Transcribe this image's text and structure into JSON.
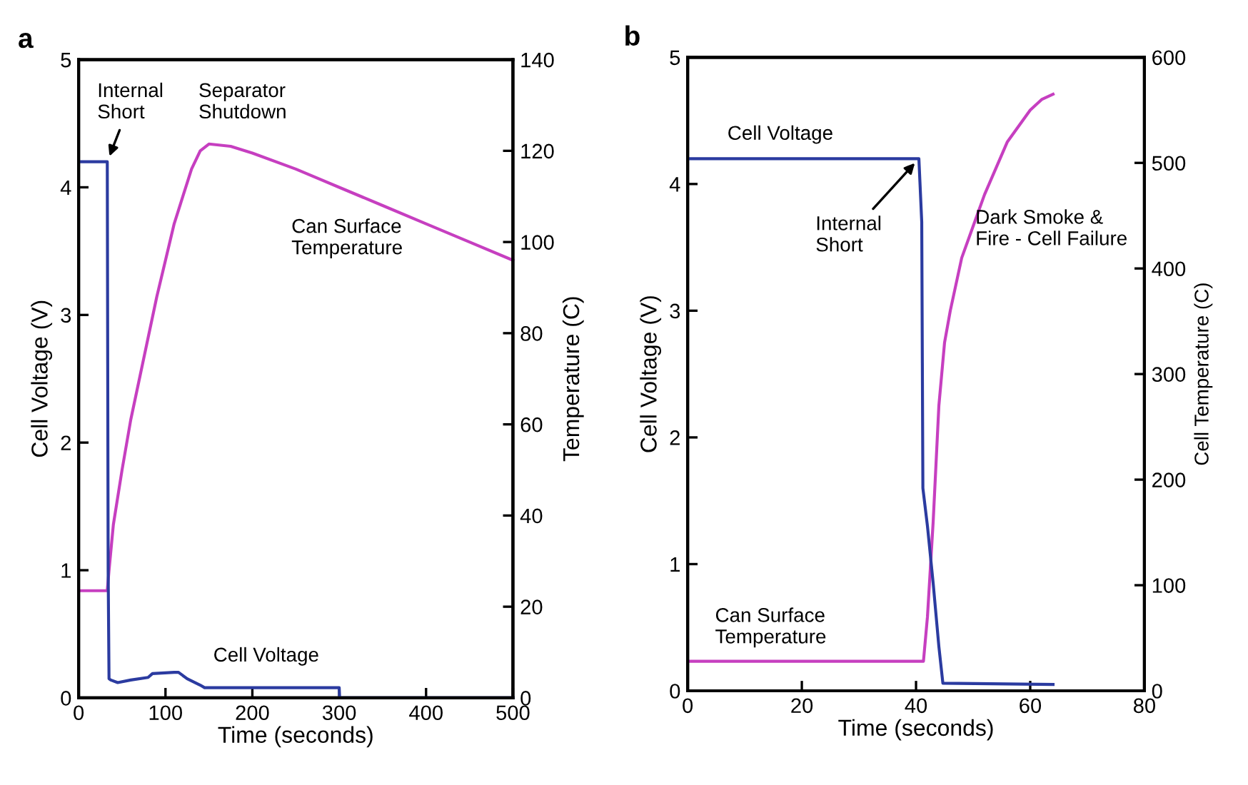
{
  "chart_data": [
    {
      "type": "line",
      "title": "a",
      "xlabel": "Time (seconds)",
      "ylabel": "Cell Voltage (V)",
      "y2label": "Temperature (C)",
      "xlim": [
        0,
        500
      ],
      "xticks": [
        0,
        100,
        200,
        300,
        400,
        500
      ],
      "ylim": [
        0,
        5
      ],
      "yticks": [
        0,
        1,
        2,
        3,
        4,
        5
      ],
      "y2lim": [
        0,
        140
      ],
      "y2ticks": [
        0,
        20,
        40,
        60,
        80,
        100,
        120,
        140
      ],
      "grid": false,
      "legend": false,
      "marker": "none",
      "line_style": "solid",
      "series": [
        {
          "name": "Cell Voltage",
          "color": "#2b3ba0",
          "x": [
            0,
            33,
            34,
            35,
            37,
            45,
            60,
            80,
            85,
            110,
            115,
            125,
            140,
            145,
            200,
            300,
            300.5,
            500
          ],
          "values": [
            4.2,
            4.2,
            1.0,
            0.15,
            0.14,
            0.12,
            0.14,
            0.16,
            0.19,
            0.2,
            0.2,
            0.15,
            0.1,
            0.08,
            0.08,
            0.08,
            0,
            0
          ]
        },
        {
          "name": "Can Surface\nTemperature",
          "color": "#c63fc0",
          "axis": "y2",
          "x": [
            0,
            33,
            35,
            40,
            50,
            60,
            70,
            80,
            90,
            100,
            110,
            120,
            130,
            140,
            150,
            175,
            200,
            250,
            300,
            350,
            400,
            450,
            500
          ],
          "values": [
            23.5,
            23.5,
            28,
            38,
            50,
            61,
            70,
            79,
            88,
            96,
            104,
            110,
            116,
            120,
            121.5,
            121,
            119.5,
            116,
            112,
            108,
            104,
            100,
            96
          ]
        }
      ],
      "annotations": [
        {
          "text": "Internal\nShort",
          "x": 33,
          "y": 4.2
        },
        "Separator\nShutdown"
      ]
    },
    {
      "type": "line",
      "title": "b",
      "xlabel": "Time (seconds)",
      "ylabel": "Cell Voltage (V)",
      "y2label": "Cell Temperature (C)",
      "xlim": [
        0,
        80
      ],
      "xticks": [
        0,
        20,
        40,
        60,
        80
      ],
      "ylim": [
        0,
        5
      ],
      "yticks": [
        0,
        1,
        2,
        3,
        4,
        5
      ],
      "y2lim": [
        0,
        600
      ],
      "y2ticks": [
        0,
        100,
        200,
        300,
        400,
        500,
        600
      ],
      "grid": false,
      "legend": false,
      "marker": "none",
      "line_style": "solid",
      "series": [
        {
          "name": "Cell Voltage",
          "color": "#2b3ba0",
          "x": [
            0,
            40.5,
            41,
            41.2,
            42,
            43,
            44,
            44.7,
            64
          ],
          "values": [
            4.2,
            4.2,
            3.7,
            1.6,
            1.3,
            0.85,
            0.35,
            0.06,
            0.05
          ]
        },
        {
          "name": "Can Surface\nTemperature",
          "color": "#c63fc0",
          "axis": "y2",
          "x": [
            0,
            41.3,
            42,
            43,
            44,
            45,
            46,
            48,
            50,
            52,
            54,
            56,
            58,
            60,
            62,
            64
          ],
          "values": [
            28,
            28,
            70,
            160,
            270,
            330,
            360,
            410,
            440,
            470,
            495,
            520,
            535,
            550,
            560,
            565
          ]
        }
      ],
      "annotations": [
        {
          "text": "Internal\nShort",
          "x": 40.5,
          "y": 4.2
        },
        "Dark Smoke &\nFire - Cell Failure"
      ]
    }
  ]
}
